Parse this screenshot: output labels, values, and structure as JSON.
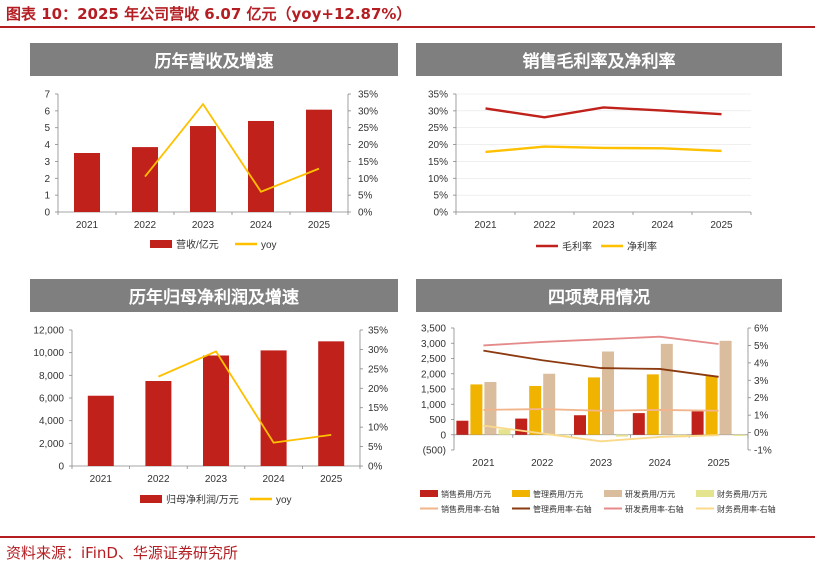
{
  "figure_title": "图表 10：2025 年公司营收 6.07 亿元（yoy+12.87%）",
  "source": "资料来源：iFinD、华源证券研究所",
  "colors": {
    "brand_red": "#b41e23",
    "bar_red": "#c0211a",
    "yellow": "#ffc000",
    "header_grey": "#7f7f7f"
  },
  "chart_data": [
    {
      "id": "c1",
      "type": "bar",
      "title": "历年营收及增速",
      "categories": [
        "2021",
        "2022",
        "2023",
        "2024",
        "2025"
      ],
      "series": [
        {
          "name": "营收/亿元",
          "kind": "bar",
          "axis": "left",
          "color": "#c0211a",
          "values": [
            3.5,
            3.85,
            5.1,
            5.4,
            6.07
          ]
        },
        {
          "name": "yoy",
          "kind": "line",
          "axis": "right",
          "color": "#ffc000",
          "values": [
            null,
            10.5,
            32.0,
            6.0,
            12.87
          ]
        }
      ],
      "ylim": [
        0,
        7
      ],
      "yticks": [
        "0",
        "1",
        "2",
        "3",
        "4",
        "5",
        "6",
        "7"
      ],
      "y2lim": [
        0,
        35
      ],
      "y2ticks": [
        "0%",
        "5%",
        "10%",
        "15%",
        "20%",
        "25%",
        "30%",
        "35%"
      ],
      "legend": "bottom"
    },
    {
      "id": "c2",
      "type": "line",
      "title": "销售毛利率及净利率",
      "categories": [
        "2021",
        "2022",
        "2023",
        "2024",
        "2025"
      ],
      "series": [
        {
          "name": "毛利率",
          "kind": "line",
          "axis": "left",
          "color": "#c0211a",
          "values": [
            30.7,
            28.1,
            31.0,
            30.1,
            29.0
          ]
        },
        {
          "name": "净利率",
          "kind": "line",
          "axis": "left",
          "color": "#ffc000",
          "values": [
            17.8,
            19.4,
            19.0,
            18.9,
            18.1
          ]
        }
      ],
      "ylim": [
        0,
        35
      ],
      "yticks": [
        "0%",
        "5%",
        "10%",
        "15%",
        "20%",
        "25%",
        "30%",
        "35%"
      ],
      "legend": "bottom"
    },
    {
      "id": "c3",
      "type": "bar",
      "title": "历年归母净利润及增速",
      "categories": [
        "2021",
        "2022",
        "2023",
        "2024",
        "2025"
      ],
      "series": [
        {
          "name": "归母净利润/万元",
          "kind": "bar",
          "axis": "left",
          "color": "#c0211a",
          "values": [
            6200,
            7500,
            9750,
            10200,
            11000
          ]
        },
        {
          "name": "yoy",
          "kind": "line",
          "axis": "right",
          "color": "#ffc000",
          "values": [
            null,
            23.0,
            29.5,
            6.0,
            8.0
          ]
        }
      ],
      "ylim": [
        0,
        12000
      ],
      "yticks": [
        "0",
        "2,000",
        "4,000",
        "6,000",
        "8,000",
        "10,000",
        "12,000"
      ],
      "y2lim": [
        0,
        35
      ],
      "y2ticks": [
        "0%",
        "5%",
        "10%",
        "15%",
        "20%",
        "25%",
        "30%",
        "35%"
      ],
      "legend": "bottom"
    },
    {
      "id": "c4",
      "type": "bar",
      "title": "四项费用情况",
      "categories": [
        "2021",
        "2022",
        "2023",
        "2024",
        "2025"
      ],
      "series": [
        {
          "name": "销售费用/万元",
          "kind": "bar",
          "axis": "left",
          "color": "#c0211a",
          "values": [
            460,
            530,
            640,
            710,
            770
          ]
        },
        {
          "name": "管理费用/万元",
          "kind": "bar",
          "axis": "left",
          "color": "#f0b400",
          "values": [
            1650,
            1600,
            1880,
            1980,
            1940
          ]
        },
        {
          "name": "研发费用/万元",
          "kind": "bar",
          "axis": "left",
          "color": "#d9bd9c",
          "values": [
            1730,
            2000,
            2730,
            2980,
            3080
          ]
        },
        {
          "name": "财务费用/万元",
          "kind": "bar",
          "axis": "left",
          "color": "#e4e48e",
          "values": [
            180,
            -20,
            -60,
            -80,
            -40
          ]
        },
        {
          "name": "销售费用率-右轴",
          "kind": "line",
          "axis": "right",
          "color": "#f2b48a",
          "values": [
            1.3,
            1.35,
            1.25,
            1.3,
            1.25
          ]
        },
        {
          "name": "管理费用率-右轴",
          "kind": "line",
          "axis": "right",
          "color": "#8b3a10",
          "values": [
            4.7,
            4.15,
            3.7,
            3.65,
            3.2
          ]
        },
        {
          "name": "研发费用率-右轴",
          "kind": "line",
          "axis": "right",
          "color": "#e58a8a",
          "values": [
            5.0,
            5.2,
            5.35,
            5.5,
            5.08
          ]
        },
        {
          "name": "财务费用率-右轴",
          "kind": "line",
          "axis": "right",
          "color": "#fbd98a",
          "values": [
            0.4,
            -0.05,
            -0.5,
            -0.25,
            -0.15
          ]
        }
      ],
      "ylim": [
        -500,
        3500
      ],
      "yticks": [
        "(500)",
        "0",
        "500",
        "1,000",
        "1,500",
        "2,000",
        "2,500",
        "3,000",
        "3,500"
      ],
      "y2lim": [
        -1,
        6
      ],
      "y2ticks": [
        "-1%",
        "0%",
        "1%",
        "2%",
        "3%",
        "4%",
        "5%",
        "6%"
      ],
      "legend": "bottom"
    }
  ]
}
